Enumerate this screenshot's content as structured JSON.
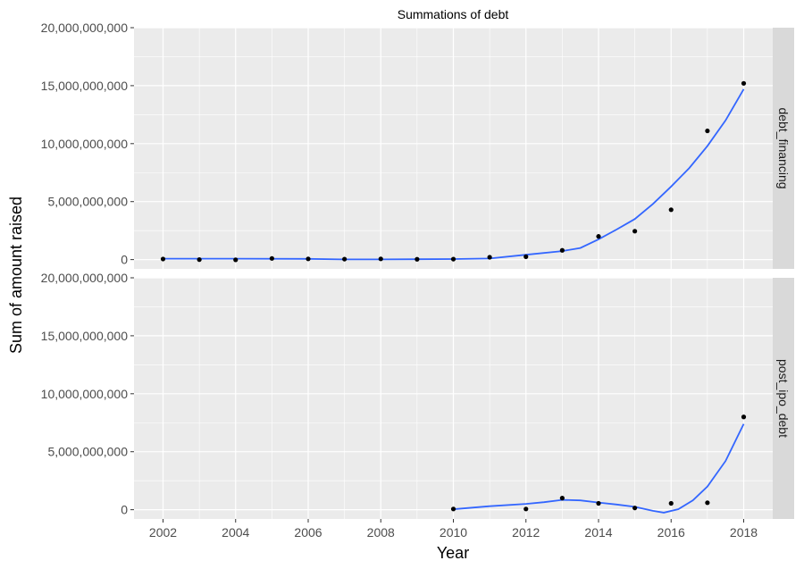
{
  "chart_data": {
    "type": "scatter",
    "title": "Summations of debt",
    "xlabel": "Year",
    "ylabel": "Sum of amount raised",
    "xlim": [
      2001.2,
      2018.8
    ],
    "ylim": [
      -800000000,
      20000000000
    ],
    "x_ticks": [
      2002,
      2004,
      2006,
      2008,
      2010,
      2012,
      2014,
      2016,
      2018
    ],
    "y_ticks": [
      0,
      5000000000,
      10000000000,
      15000000000,
      20000000000
    ],
    "y_tick_labels": [
      "0",
      "5,000,000,000",
      "10,000,000,000",
      "15,000,000,000",
      "20,000,000,000"
    ],
    "grid": true,
    "trend_color": "#3366ff",
    "point_color": "#000000",
    "panel_bg": "#ebebeb",
    "strip_bg": "#d9d9d9",
    "facets": [
      {
        "name": "debt_financing",
        "points": [
          {
            "x": 2002,
            "y": 50000000
          },
          {
            "x": 2003,
            "y": 0
          },
          {
            "x": 2004,
            "y": -20000000
          },
          {
            "x": 2005,
            "y": 100000000
          },
          {
            "x": 2006,
            "y": 60000000
          },
          {
            "x": 2007,
            "y": 40000000
          },
          {
            "x": 2008,
            "y": 60000000
          },
          {
            "x": 2009,
            "y": 30000000
          },
          {
            "x": 2010,
            "y": 40000000
          },
          {
            "x": 2011,
            "y": 200000000
          },
          {
            "x": 2012,
            "y": 250000000
          },
          {
            "x": 2013,
            "y": 800000000
          },
          {
            "x": 2014,
            "y": 2000000000
          },
          {
            "x": 2015,
            "y": 2450000000
          },
          {
            "x": 2016,
            "y": 4300000000
          },
          {
            "x": 2017,
            "y": 11100000000
          },
          {
            "x": 2018,
            "y": 15200000000
          }
        ],
        "trend": [
          {
            "x": 2002,
            "y": 80000000
          },
          {
            "x": 2004,
            "y": 80000000
          },
          {
            "x": 2006,
            "y": 60000000
          },
          {
            "x": 2007,
            "y": 20000000
          },
          {
            "x": 2008,
            "y": 20000000
          },
          {
            "x": 2009,
            "y": 30000000
          },
          {
            "x": 2010,
            "y": 50000000
          },
          {
            "x": 2011,
            "y": 90000000
          },
          {
            "x": 2012,
            "y": 420000000
          },
          {
            "x": 2013,
            "y": 730000000
          },
          {
            "x": 2013.5,
            "y": 1000000000
          },
          {
            "x": 2014,
            "y": 1750000000
          },
          {
            "x": 2014.5,
            "y": 2600000000
          },
          {
            "x": 2015,
            "y": 3500000000
          },
          {
            "x": 2015.5,
            "y": 4800000000
          },
          {
            "x": 2016,
            "y": 6300000000
          },
          {
            "x": 2016.5,
            "y": 7900000000
          },
          {
            "x": 2017,
            "y": 9800000000
          },
          {
            "x": 2017.5,
            "y": 12000000000
          },
          {
            "x": 2018,
            "y": 14700000000
          }
        ]
      },
      {
        "name": "post_ipo_debt",
        "points": [
          {
            "x": 2010,
            "y": 60000000
          },
          {
            "x": 2012,
            "y": 60000000
          },
          {
            "x": 2013,
            "y": 1000000000
          },
          {
            "x": 2014,
            "y": 550000000
          },
          {
            "x": 2015,
            "y": 150000000
          },
          {
            "x": 2016,
            "y": 550000000
          },
          {
            "x": 2017,
            "y": 600000000
          },
          {
            "x": 2018,
            "y": 8000000000
          }
        ],
        "trend": [
          {
            "x": 2010,
            "y": 40000000
          },
          {
            "x": 2011,
            "y": 300000000
          },
          {
            "x": 2012,
            "y": 500000000
          },
          {
            "x": 2012.5,
            "y": 650000000
          },
          {
            "x": 2013,
            "y": 850000000
          },
          {
            "x": 2013.5,
            "y": 800000000
          },
          {
            "x": 2014,
            "y": 620000000
          },
          {
            "x": 2014.5,
            "y": 450000000
          },
          {
            "x": 2015,
            "y": 250000000
          },
          {
            "x": 2015.5,
            "y": -100000000
          },
          {
            "x": 2015.8,
            "y": -250000000
          },
          {
            "x": 2016.2,
            "y": 50000000
          },
          {
            "x": 2016.6,
            "y": 800000000
          },
          {
            "x": 2017,
            "y": 2000000000
          },
          {
            "x": 2017.5,
            "y": 4200000000
          },
          {
            "x": 2018,
            "y": 7400000000
          }
        ]
      }
    ]
  }
}
